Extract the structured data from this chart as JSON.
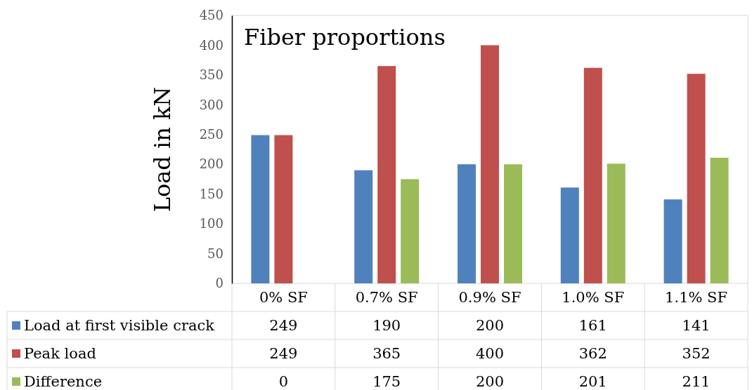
{
  "chart_data": {
    "type": "bar",
    "title": "Fiber proportions",
    "ylabel": "Load in kN",
    "categories": [
      "0% SF",
      "0.7% SF",
      "0.9% SF",
      "1.0% SF",
      "1.1% SF"
    ],
    "series": [
      {
        "name": "Load at first visible crack",
        "color": "#4f81bd",
        "values": [
          249,
          190,
          200,
          161,
          141
        ]
      },
      {
        "name": "Peak load",
        "color": "#c0504d",
        "values": [
          249,
          365,
          400,
          362,
          352
        ]
      },
      {
        "name": "Difference",
        "color": "#9bbb59",
        "values": [
          0,
          175,
          200,
          201,
          211
        ]
      }
    ],
    "ylim": [
      0,
      450
    ],
    "yticks": [
      0,
      50,
      100,
      150,
      200,
      250,
      300,
      350,
      400,
      450
    ],
    "data_labels": true,
    "legend": "bottom",
    "grid": false
  }
}
